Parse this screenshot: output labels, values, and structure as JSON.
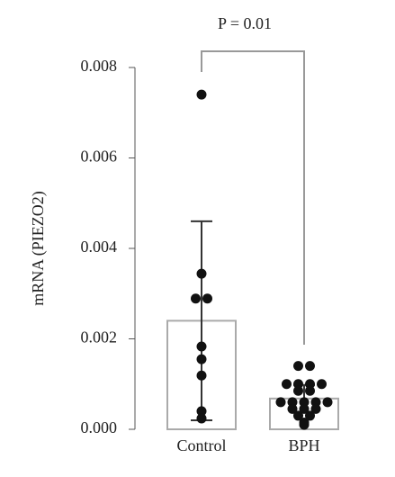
{
  "chart_data": {
    "type": "bar",
    "annotation": "P = 0.01",
    "y_label": "mRNA (PIEZO2)",
    "categories": [
      "Control",
      "BPH"
    ],
    "values": [
      0.0024,
      0.00068
    ],
    "errors": [
      0.0022,
      0.0003
    ],
    "points": [
      [
        0.0074,
        0.00344,
        0.00289,
        0.00289,
        0.00183,
        0.00155,
        0.00119,
        0.0004,
        0.00024
      ],
      [
        0.0014,
        0.0014,
        0.001,
        0.001,
        0.001,
        0.001,
        0.00085,
        0.00085,
        0.0006,
        0.0006,
        0.0006,
        0.0006,
        0.0006,
        0.00045,
        0.00045,
        0.00045,
        0.0003,
        0.0003,
        0.00015,
        0.0001
      ]
    ],
    "color": "#ffffff",
    "edge_color": "#aaaaaa",
    "point_color": "#111111",
    "ylim": [
      0,
      0.008
    ],
    "yticks": [
      {
        "value": 0,
        "label": "0.000"
      },
      0.002,
      0.004,
      0.006,
      0.008
    ]
  }
}
